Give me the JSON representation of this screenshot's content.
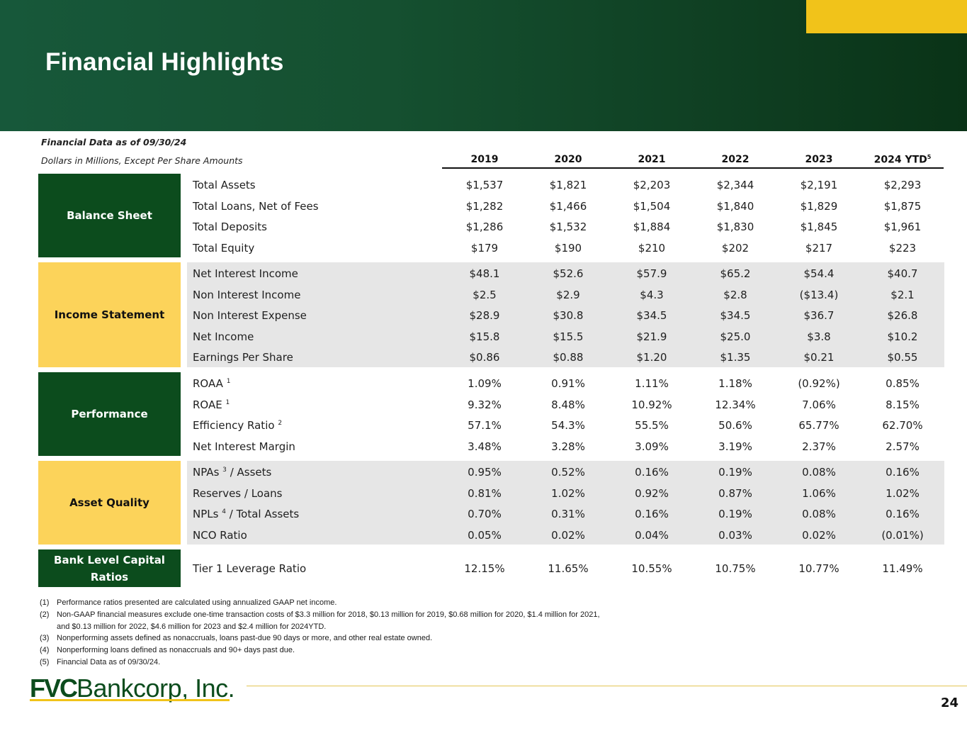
{
  "title": "Financial Highlights",
  "meta": {
    "as_of": "Financial Data as of 09/30/24",
    "units": "Dollars in Millions, Except Per Share Amounts"
  },
  "years": [
    "2019",
    "2020",
    "2021",
    "2022",
    "2023",
    "2024 YTD"
  ],
  "years_last_footnote": "5",
  "sections": [
    {
      "category": "Balance Sheet",
      "rows": [
        {
          "label": "Total Assets",
          "sup": "",
          "label2": "",
          "values": [
            "$1,537",
            "$1,821",
            "$2,203",
            "$2,344",
            "$2,191",
            "$2,293"
          ]
        },
        {
          "label": "Total Loans, Net of Fees",
          "sup": "",
          "label2": "",
          "values": [
            "$1,282",
            "$1,466",
            "$1,504",
            "$1,840",
            "$1,829",
            "$1,875"
          ]
        },
        {
          "label": "Total Deposits",
          "sup": "",
          "label2": "",
          "values": [
            "$1,286",
            "$1,532",
            "$1,884",
            "$1,830",
            "$1,845",
            "$1,961"
          ]
        },
        {
          "label": "Total Equity",
          "sup": "",
          "label2": "",
          "values": [
            "$179",
            "$190",
            "$210",
            "$202",
            "$217",
            "$223"
          ]
        }
      ]
    },
    {
      "category": "Income Statement",
      "rows": [
        {
          "label": "Net Interest Income",
          "sup": "",
          "label2": "",
          "values": [
            "$48.1",
            "$52.6",
            "$57.9",
            "$65.2",
            "$54.4",
            "$40.7"
          ]
        },
        {
          "label": "Non Interest Income",
          "sup": "",
          "label2": "",
          "values": [
            "$2.5",
            "$2.9",
            "$4.3",
            "$2.8",
            "($13.4)",
            "$2.1"
          ]
        },
        {
          "label": "Non Interest Expense",
          "sup": "",
          "label2": "",
          "values": [
            "$28.9",
            "$30.8",
            "$34.5",
            "$34.5",
            "$36.7",
            "$26.8"
          ]
        },
        {
          "label": "Net Income",
          "sup": "",
          "label2": "",
          "values": [
            "$15.8",
            "$15.5",
            "$21.9",
            "$25.0",
            "$3.8",
            "$10.2"
          ]
        },
        {
          "label": "Earnings Per Share",
          "sup": "",
          "label2": "",
          "values": [
            "$0.86",
            "$0.88",
            "$1.20",
            "$1.35",
            "$0.21",
            "$0.55"
          ]
        }
      ]
    },
    {
      "category": "Performance",
      "rows": [
        {
          "label": "ROAA",
          "sup": "1",
          "label2": "",
          "values": [
            "1.09%",
            "0.91%",
            "1.11%",
            "1.18%",
            "(0.92%)",
            "0.85%"
          ]
        },
        {
          "label": "ROAE",
          "sup": "1",
          "label2": "",
          "values": [
            "9.32%",
            "8.48%",
            "10.92%",
            "12.34%",
            "7.06%",
            "8.15%"
          ]
        },
        {
          "label": "Efficiency Ratio",
          "sup": "2",
          "label2": "",
          "values": [
            "57.1%",
            "54.3%",
            "55.5%",
            "50.6%",
            "65.77%",
            "62.70%"
          ]
        },
        {
          "label": "Net Interest Margin",
          "sup": "",
          "label2": "",
          "values": [
            "3.48%",
            "3.28%",
            "3.09%",
            "3.19%",
            "2.37%",
            "2.57%"
          ]
        }
      ]
    },
    {
      "category": "Asset Quality",
      "rows": [
        {
          "label": "NPAs",
          "sup": "3",
          "label2": "/ Assets",
          "values": [
            "0.95%",
            "0.52%",
            "0.16%",
            "0.19%",
            "0.08%",
            "0.16%"
          ]
        },
        {
          "label": "Reserves / Loans",
          "sup": "",
          "label2": "",
          "values": [
            "0.81%",
            "1.02%",
            "0.92%",
            "0.87%",
            "1.06%",
            "1.02%"
          ]
        },
        {
          "label": "NPLs",
          "sup": "4",
          "label2": "/ Total Assets",
          "values": [
            "0.70%",
            "0.31%",
            "0.16%",
            "0.19%",
            "0.08%",
            "0.16%"
          ]
        },
        {
          "label": "NCO Ratio",
          "sup": "",
          "label2": "",
          "values": [
            "0.05%",
            "0.02%",
            "0.04%",
            "0.03%",
            "0.02%",
            "(0.01%)"
          ]
        }
      ]
    },
    {
      "category": "Bank Level Capital Ratios",
      "rows": [
        {
          "label": "Tier 1 Leverage Ratio",
          "sup": "",
          "label2": "",
          "values": [
            "12.15%",
            "11.65%",
            "10.55%",
            "10.75%",
            "10.77%",
            "11.49%"
          ]
        }
      ]
    }
  ],
  "footnotes": [
    {
      "num": "(1)",
      "text": "Performance ratios presented are calculated using annualized GAAP net income."
    },
    {
      "num": "(2)",
      "text": "Non-GAAP financial measures exclude one-time transaction costs of $3.3 million for 2018, $0.13 million for 2019,  $0.68 million for 2020,  $1.4 million for 2021,"
    },
    {
      "num": "",
      "text": "and $0.13 million for 2022, $4.6 million for 2023 and $2.4 million for 2024YTD."
    },
    {
      "num": "(3)",
      "text": "Nonperforming assets defined as nonaccruals, loans past-due 90 days or more, and other real estate owned."
    },
    {
      "num": "(4)",
      "text": "Nonperforming loans defined as nonaccruals and 90+ days past due."
    },
    {
      "num": "(5)",
      "text": "Financial Data as of 09/30/24."
    }
  ],
  "logo": {
    "bold": "FVC",
    "rest": "Bankcorp, Inc."
  },
  "page_number": "24",
  "colors": {
    "dark_green": "#0c4c1d",
    "gold": "#f1c31a",
    "light_yellow": "#fcd35a",
    "shade_gray": "#e6e6e6"
  }
}
